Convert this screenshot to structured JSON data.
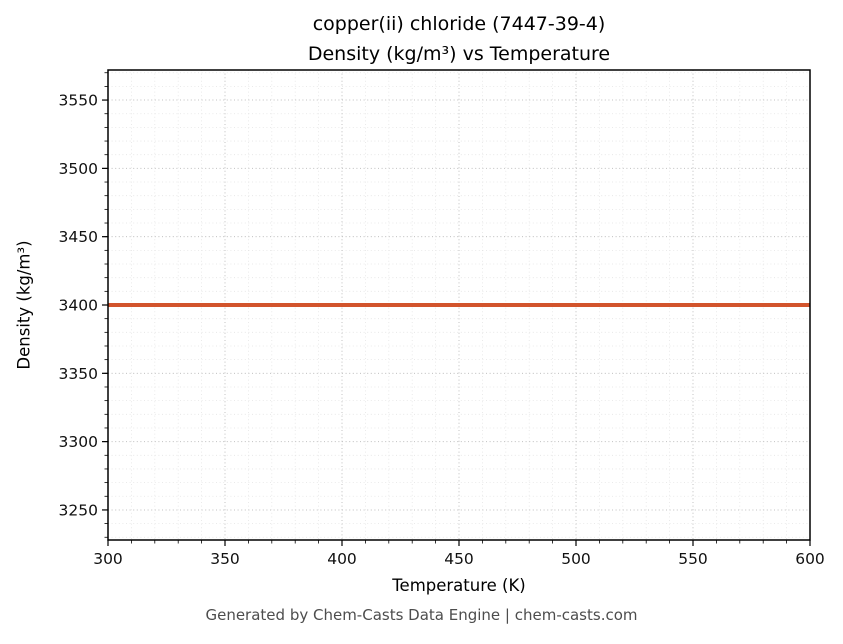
{
  "header": {
    "title_line1": "copper(ii) chloride (7447-39-4)",
    "title_line2": "Density (kg/m³) vs Temperature"
  },
  "footer": {
    "text": "Generated by Chem-Casts Data Engine | chem-casts.com"
  },
  "chart_data": {
    "type": "line",
    "title": "copper(ii) chloride (7447-39-4)\nDensity (kg/m³) vs Temperature",
    "xlabel": "Temperature (K)",
    "ylabel": "Density (kg/m³)",
    "xlim": [
      300,
      600
    ],
    "ylim": [
      3228,
      3572
    ],
    "xticks": [
      300,
      350,
      400,
      450,
      500,
      550,
      600
    ],
    "yticks": [
      3250,
      3300,
      3350,
      3400,
      3450,
      3500,
      3550
    ],
    "x_minor_step": 10,
    "y_minor_step": 10,
    "grid": true,
    "legend": "none",
    "colors": {
      "line": "#d2542c",
      "major_grid": "#c3c3c3",
      "minor_grid": "#e4e4e4",
      "spine": "#000000",
      "tick_label": "#111111"
    },
    "series": [
      {
        "name": "density",
        "x": [
          300,
          600
        ],
        "y": [
          3400,
          3400
        ],
        "linewidth": 4
      }
    ]
  }
}
